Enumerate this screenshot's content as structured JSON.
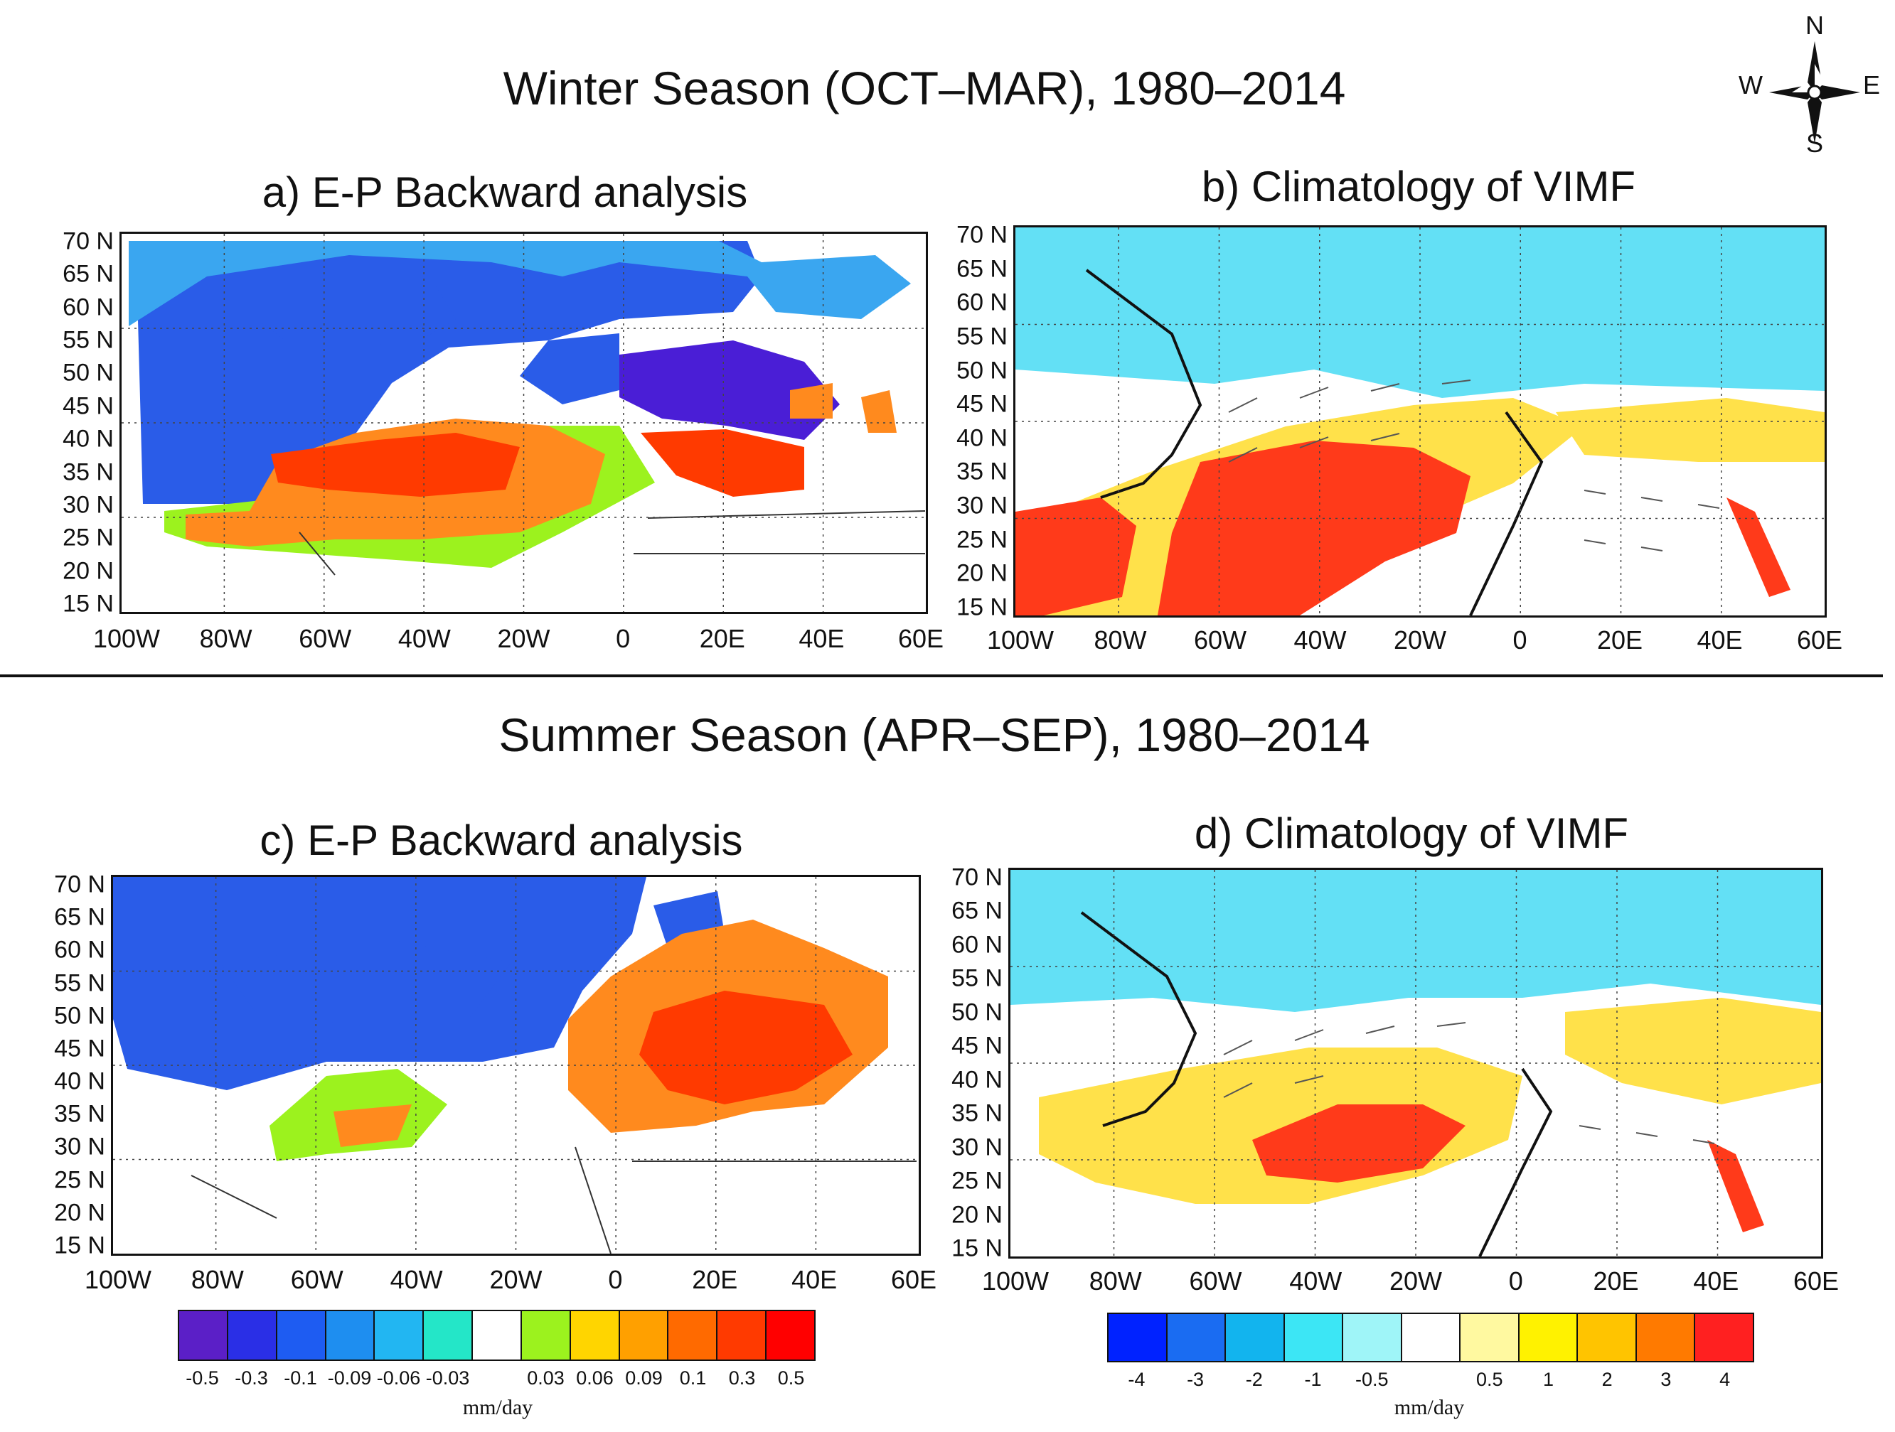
{
  "winter_title": "Winter Season (OCT–MAR), 1980–2014",
  "summer_title": "Summer Season (APR–SEP), 1980–2014",
  "compass": {
    "n": "N",
    "s": "S",
    "w": "W",
    "e": "E"
  },
  "panels": {
    "a": {
      "title": "a) E-P Backward analysis"
    },
    "b": {
      "title": "b) Climatology of VIMF"
    },
    "c": {
      "title": "c) E-P Backward analysis"
    },
    "d": {
      "title": "d) Climatology of VIMF"
    }
  },
  "lat_labels": [
    "70 N",
    "65 N",
    "60 N",
    "55 N",
    "50 N",
    "45 N",
    "40 N",
    "35 N",
    "30 N",
    "25 N",
    "20 N",
    "15 N"
  ],
  "lon_labels": [
    "100W",
    "80W",
    "60W",
    "40W",
    "20W",
    "0",
    "20E",
    "40E",
    "60E"
  ],
  "ep_colorbar": {
    "colors": [
      "#5b1fc7",
      "#2a2fe6",
      "#1e5cf2",
      "#1e8ef0",
      "#22b6f2",
      "#24e6c8",
      "#ffffff",
      "#9cf21e",
      "#ffd500",
      "#ffa000",
      "#ff6a00",
      "#ff3a00",
      "#ff0000"
    ],
    "labels": [
      "-0.5",
      "-0.3",
      "-0.1",
      "-0.09",
      "-0.06",
      "-0.03",
      "0.03",
      "0.06",
      "0.09",
      "0.1",
      "0.3",
      "0.5"
    ],
    "units": "mm/day"
  },
  "vimf_colorbar": {
    "colors": [
      "#0022ff",
      "#1a6cf2",
      "#12b4ee",
      "#3ce6f5",
      "#9ff5f8",
      "#ffffff",
      "#fff9a0",
      "#fff200",
      "#ffc400",
      "#ff7a00",
      "#ff2020"
    ],
    "labels": [
      "-4",
      "-3",
      "-2",
      "-1",
      "-0.5",
      "0.5",
      "1",
      "2",
      "3",
      "4"
    ],
    "units": "mm/day"
  },
  "colors": {
    "ep_neg_strong": "#4a1ed6",
    "ep_neg": "#2a5ce8",
    "ep_neg_weak": "#3aa6f0",
    "ep_pos_weak": "#9cf21e",
    "ep_pos": "#ff8a1e",
    "ep_pos_strong": "#ff3a00",
    "vimf_neg": "#63e0f5",
    "vimf_pos": "#ffe14a",
    "vimf_pos_strong": "#ff3a1a"
  }
}
